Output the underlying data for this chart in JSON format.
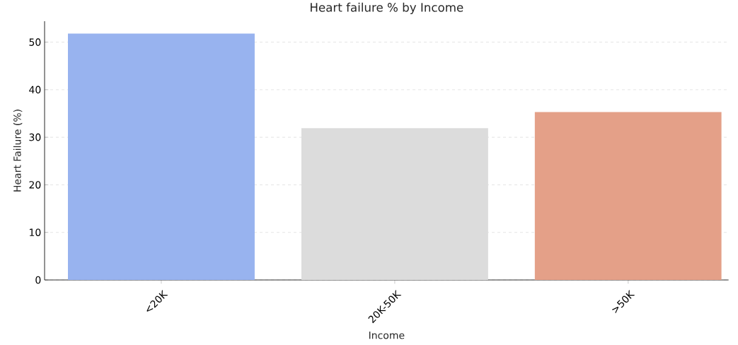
{
  "chart_data": {
    "type": "bar",
    "title": "Heart failure % by Income",
    "xlabel": "Income",
    "ylabel": "Heart Failure (%)",
    "categories": [
      "<20K",
      "20K-50K",
      ">50K"
    ],
    "values": [
      51.8,
      31.9,
      35.3
    ],
    "colors": [
      "#98b3ef",
      "#dcdcdc",
      "#e4a088"
    ],
    "ylim": [
      0,
      54.4
    ],
    "yticks": [
      0,
      10,
      20,
      30,
      40,
      50
    ],
    "grid": "y"
  }
}
